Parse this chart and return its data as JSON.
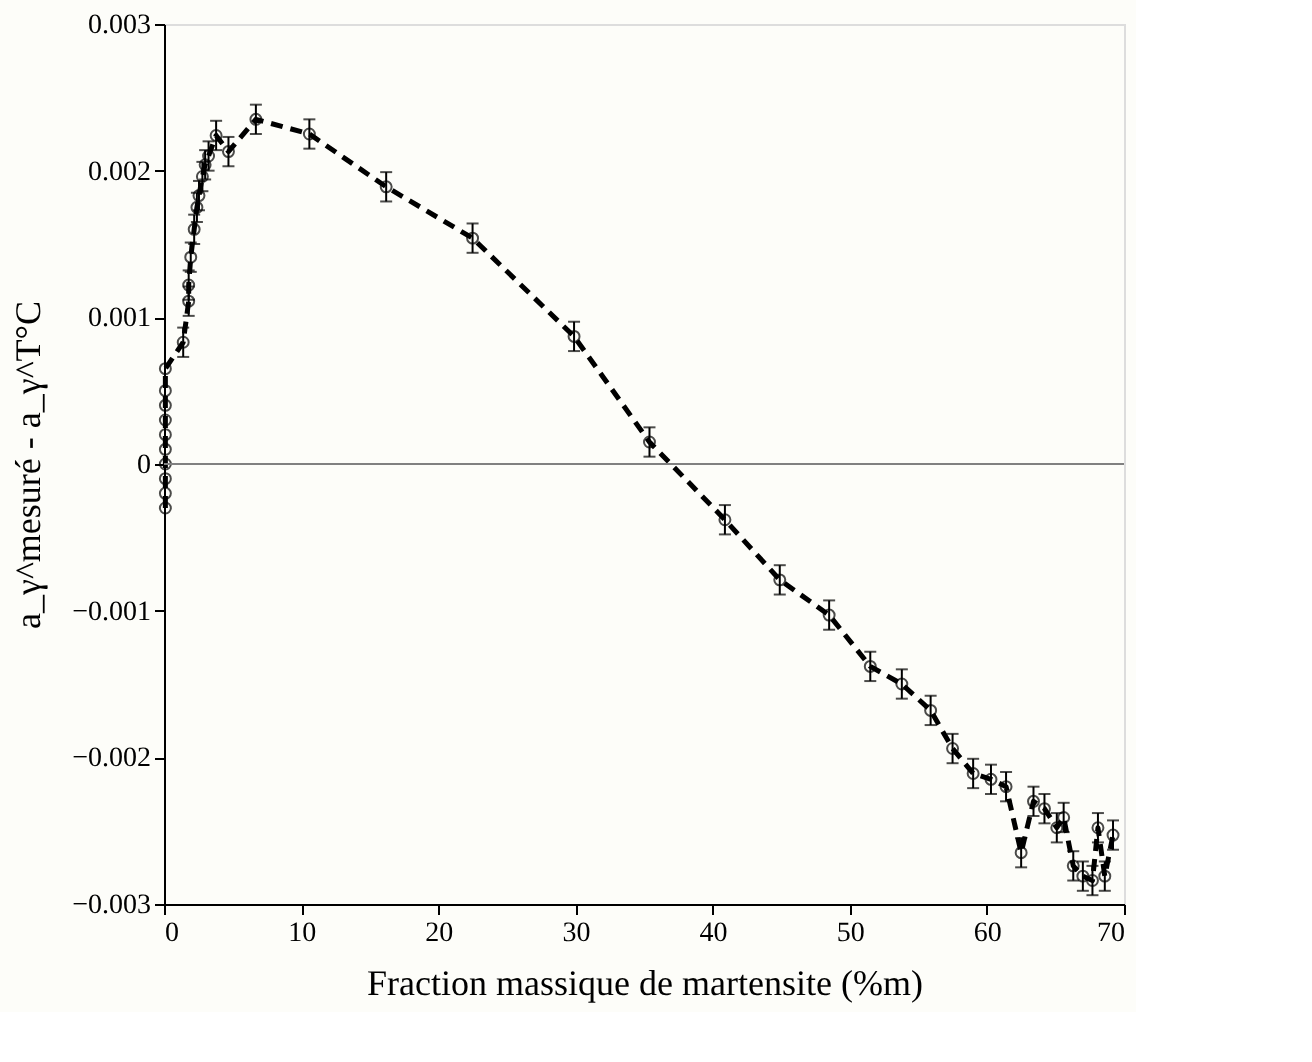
{
  "chart_data": {
    "type": "line",
    "xlabel": "Fraction massique de martensite (%m)",
    "ylabel": "a_γ^mesuré - a_γ^T°C",
    "x": [
      0.1,
      0.1,
      0.1,
      0.1,
      0.1,
      0.1,
      0.1,
      0.1,
      0.1,
      0.1,
      1.4,
      1.8,
      1.8,
      1.95,
      2.2,
      2.4,
      2.55,
      2.8,
      3.0,
      3.25,
      3.8,
      4.7,
      6.7,
      10.6,
      16.2,
      22.5,
      29.9,
      35.4,
      40.9,
      44.9,
      48.5,
      51.5,
      53.8,
      55.9,
      57.5,
      59.0,
      60.3,
      61.4,
      62.5,
      63.4,
      64.2,
      65.1,
      65.6,
      66.3,
      67.0,
      67.7,
      68.1,
      68.6,
      69.2
    ],
    "series": [
      {
        "color": "#000000",
        "values": [
          -0.0003,
          -0.0002,
          -0.0001,
          0.0,
          0.0001,
          0.0002,
          0.0003,
          0.0004,
          0.0005,
          0.00065,
          0.00083,
          0.00111,
          0.00122,
          0.00141,
          0.0016,
          0.00175,
          0.00183,
          0.00196,
          0.00204,
          0.0021,
          0.00224,
          0.00213,
          0.00235,
          0.00225,
          0.00189,
          0.00154,
          0.00087,
          0.00015,
          -0.00038,
          -0.00079,
          -0.00103,
          -0.00138,
          -0.0015,
          -0.00168,
          -0.00194,
          -0.00211,
          -0.00215,
          -0.0022,
          -0.00265,
          -0.0023,
          -0.00235,
          -0.00248,
          -0.00241,
          -0.00274,
          -0.00281,
          -0.00284,
          -0.00248,
          -0.00281,
          -0.00253
        ],
        "errors": [
          null,
          null,
          null,
          null,
          null,
          null,
          null,
          null,
          null,
          null,
          0.0001,
          0.0001,
          0.0001,
          0.0001,
          0.0001,
          0.0001,
          0.0001,
          0.0001,
          0.0001,
          0.0001,
          0.0001,
          0.0001,
          0.0001,
          0.0001,
          0.0001,
          0.0001,
          0.0001,
          0.0001,
          0.0001,
          0.0001,
          0.0001,
          0.0001,
          0.0001,
          0.0001,
          0.0001,
          0.0001,
          0.0001,
          0.0001,
          0.0001,
          0.0001,
          0.0001,
          0.0001,
          0.0001,
          0.0001,
          0.0001,
          0.0001,
          0.0001,
          0.0001,
          0.0001
        ]
      }
    ],
    "xlim": [
      0,
      70
    ],
    "xticks": [
      0,
      10,
      20,
      30,
      40,
      50,
      60,
      70
    ],
    "ylim": [
      -0.003,
      0.003
    ],
    "yticks": [
      -0.003,
      -0.002,
      -0.001,
      0,
      0.001,
      0.002,
      0.003
    ],
    "ref_lines": [
      {
        "axis": "y",
        "value": 0,
        "color": "#808080"
      }
    ],
    "marker": "circle",
    "line_style": "dashed",
    "grid": false
  }
}
